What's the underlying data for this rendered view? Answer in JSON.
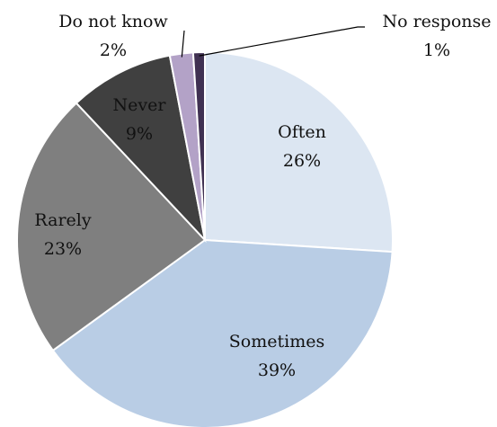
{
  "chart_data": {
    "type": "pie",
    "title": "",
    "slices": [
      {
        "label": "Often",
        "value": 26,
        "percent_label": "26%",
        "color": "#dce6f2"
      },
      {
        "label": "Sometimes",
        "value": 39,
        "percent_label": "39%",
        "color": "#b9cde5"
      },
      {
        "label": "Rarely",
        "value": 23,
        "percent_label": "23%",
        "color": "#7f7f7f"
      },
      {
        "label": "Never",
        "value": 9,
        "percent_label": "9%",
        "color": "#404040"
      },
      {
        "label": "Do not know",
        "value": 2,
        "percent_label": "2%",
        "color": "#b3a2c7"
      },
      {
        "label": "No response",
        "value": 1,
        "percent_label": "1%",
        "color": "#403152"
      }
    ],
    "legend": "none",
    "start_angle": "12 o'clock",
    "direction": "clockwise"
  }
}
